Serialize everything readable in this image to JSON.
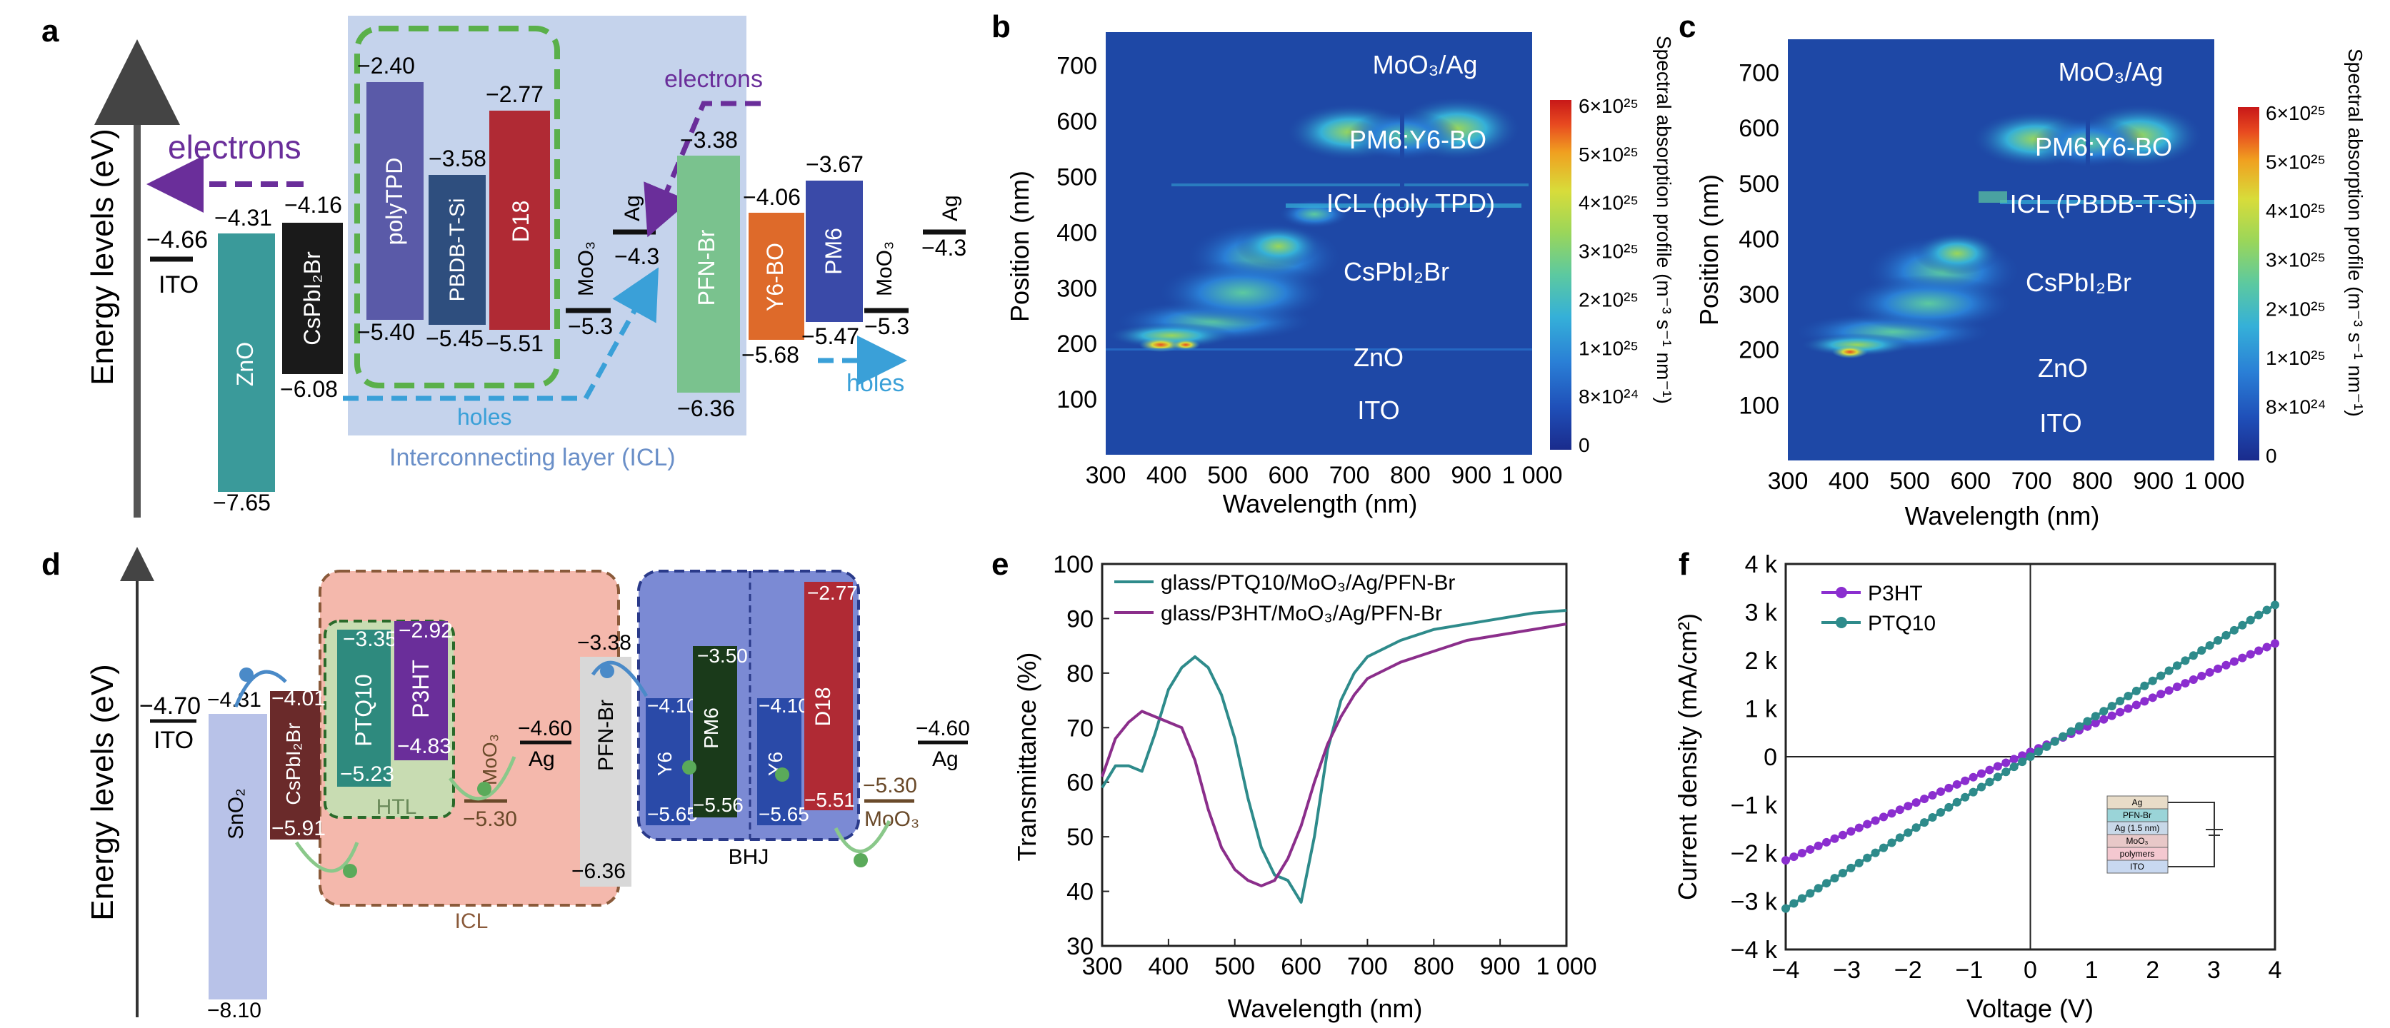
{
  "panel_labels": [
    "a",
    "b",
    "c",
    "d",
    "e",
    "f"
  ],
  "colors": {
    "cbar": [
      "#1a2b8c",
      "#1f4fb8",
      "#2a7fd6",
      "#35b0d8",
      "#5cc9a0",
      "#9ad65a",
      "#d8dc3a",
      "#f0a020",
      "#e84a20",
      "#c81818"
    ],
    "field": "#1e48a6"
  },
  "panel_a": {
    "axis": "Energy levels (eV)",
    "electrons_left": "electrons",
    "electrons_right": "electrons",
    "holes_mid": "holes",
    "holes_right": "holes",
    "icl_caption": "Interconnecting layer (ICL)",
    "ito": {
      "label": "ITO",
      "value": "−4.66"
    },
    "zno": {
      "label": "ZnO",
      "top": "−4.31",
      "bottom": "−7.65"
    },
    "cspbi": {
      "label": "CsPbI₂Br",
      "top": "−4.16",
      "bottom": "−6.08"
    },
    "polytpd": {
      "label": "polyTPD",
      "top": "−2.40",
      "bottom": "−5.40"
    },
    "pbdb": {
      "label": "PBDB-T-Si",
      "top": "−3.58",
      "bottom": "−5.45"
    },
    "d18": {
      "label": "D18",
      "top": "−2.77",
      "bottom": "−5.51"
    },
    "moo3_1": {
      "label": "MoO₃",
      "value": "−5.3"
    },
    "ag_1": {
      "label": "Ag",
      "value": "−4.3"
    },
    "pfn": {
      "label": "PFN-Br",
      "top": "−3.38",
      "bottom": "−6.36"
    },
    "y6bo": {
      "label": "Y6-BO",
      "top": "−4.06",
      "bottom": "−5.68"
    },
    "pm6": {
      "label": "PM6",
      "top": "−3.67",
      "bottom": "−5.47"
    },
    "moo3_2": {
      "label": "MoO₃",
      "value": "−5.3"
    },
    "ag_2": {
      "label": "Ag",
      "value": "−4.3"
    }
  },
  "panel_b": {
    "xlabel": "Wavelength (nm)",
    "ylabel": "Position (nm)",
    "xticks": [
      "300",
      "400",
      "500",
      "600",
      "700",
      "800",
      "900",
      "1 000"
    ],
    "yticks": [
      "100",
      "200",
      "300",
      "400",
      "500",
      "600",
      "700"
    ],
    "layers": [
      "MoO₃/Ag",
      "PM6:Y6-BO",
      "ICL (poly TPD)",
      "CsPbI₂Br",
      "ZnO",
      "ITO"
    ],
    "cbar_ticks": [
      "6×10²⁵",
      "5×10²⁵",
      "4×10²⁵",
      "3×10²⁵",
      "2×10²⁵",
      "1×10²⁵",
      "8×10²⁴",
      "0"
    ],
    "cbar_label": "Spectral absorption profile (m⁻³ s⁻¹ nm⁻¹)"
  },
  "panel_c": {
    "xlabel": "Wavelength (nm)",
    "ylabel": "Position (nm)",
    "xticks": [
      "300",
      "400",
      "500",
      "600",
      "700",
      "800",
      "900",
      "1 000"
    ],
    "yticks": [
      "100",
      "200",
      "300",
      "400",
      "500",
      "600",
      "700"
    ],
    "layers": [
      "MoO₃/Ag",
      "PM6:Y6-BO",
      "ICL (PBDB-T-Si)",
      "CsPbI₂Br",
      "ZnO",
      "ITO"
    ],
    "cbar_ticks": [
      "6×10²⁵",
      "5×10²⁵",
      "4×10²⁵",
      "3×10²⁵",
      "2×10²⁵",
      "1×10²⁵",
      "8×10²⁴",
      "0"
    ],
    "cbar_label": "Spectral absorption profile (m⁻³ s⁻¹ nm⁻¹)"
  },
  "panel_d": {
    "axis": "Energy levels (eV)",
    "ito": {
      "label": "ITO",
      "value": "−4.70"
    },
    "sno2": {
      "label": "SnO₂",
      "top": "−4.31",
      "bottom": "−8.10"
    },
    "cspbi": {
      "label": "CsPbI₂Br",
      "top": "−4.01",
      "bottom": "−5.91"
    },
    "ptq10": {
      "label": "PTQ10",
      "top": "−3.35",
      "bottom": "−5.23"
    },
    "p3ht": {
      "label": "P3HT",
      "top": "−2.92",
      "bottom": "−4.83"
    },
    "htl": "HTL",
    "moo3_1": {
      "label": "MoO₃",
      "value": "−5.30"
    },
    "ag_1": {
      "label": "Ag",
      "value": "−4.60"
    },
    "pfn": {
      "label": "PFN-Br",
      "top": "−3.38",
      "bottom": "−6.36"
    },
    "y6a": {
      "label": "Y6",
      "top": "−4.10",
      "bottom": "−5.65"
    },
    "pm6": {
      "label": "PM6",
      "top": "−3.50",
      "bottom": "−5.56"
    },
    "y6b": {
      "label": "Y6",
      "top": "−4.10",
      "bottom": "−5.65"
    },
    "d18": {
      "label": "D18",
      "top": "−2.77",
      "bottom": "−5.51"
    },
    "moo3_2": {
      "label": "MoO₃",
      "value": "−5.30"
    },
    "ag_2": {
      "label": "Ag",
      "value": "−4.60"
    },
    "icl": "ICL",
    "bhj": "BHJ"
  },
  "chart_data": [
    {
      "panel": "e",
      "type": "line",
      "xlabel": "Wavelength (nm)",
      "ylabel": "Transmittance (%)",
      "xlim": [
        300,
        1000
      ],
      "ylim": [
        30,
        100
      ],
      "xticks": [
        "300",
        "400",
        "500",
        "600",
        "700",
        "800",
        "900",
        "1 000"
      ],
      "yticks": [
        "30",
        "40",
        "50",
        "60",
        "70",
        "80",
        "90",
        "100"
      ],
      "series": [
        {
          "name": "glass/PTQ10/MoO₃/Ag/PFN-Br",
          "color": "#2e8b8b",
          "x": [
            300,
            320,
            340,
            360,
            380,
            400,
            420,
            440,
            460,
            480,
            500,
            520,
            540,
            560,
            580,
            600,
            620,
            640,
            660,
            680,
            700,
            750,
            800,
            850,
            900,
            950,
            1000
          ],
          "y": [
            59,
            63,
            63,
            62,
            69,
            77,
            81,
            83,
            81,
            76,
            68,
            57,
            48,
            43,
            42,
            38,
            50,
            66,
            75,
            80,
            83,
            86,
            88,
            89,
            90,
            91,
            91.5
          ]
        },
        {
          "name": "glass/P3HT/MoO₃/Ag/PFN-Br",
          "color": "#8b2e8b",
          "x": [
            300,
            320,
            340,
            360,
            380,
            400,
            420,
            440,
            460,
            480,
            500,
            520,
            540,
            560,
            580,
            600,
            620,
            640,
            660,
            680,
            700,
            750,
            800,
            850,
            900,
            950,
            1000
          ],
          "y": [
            61,
            68,
            71,
            73,
            72,
            71,
            70,
            64,
            55,
            48,
            44,
            42,
            41,
            42,
            46,
            52,
            60,
            67,
            72,
            76,
            79,
            82,
            84,
            86,
            87,
            88,
            89
          ]
        }
      ]
    },
    {
      "panel": "f",
      "type": "line",
      "xlabel": "Voltage (V)",
      "ylabel": "Current density (mA/cm²)",
      "xlim": [
        -4,
        4
      ],
      "ylim": [
        -4000,
        4000
      ],
      "xticks": [
        "−4",
        "−3",
        "−2",
        "−1",
        "0",
        "1",
        "2",
        "3",
        "4"
      ],
      "yticks": [
        "−4 k",
        "−3 k",
        "−2 k",
        "−1 k",
        "0",
        "1 k",
        "2 k",
        "3 k",
        "4 k"
      ],
      "series": [
        {
          "name": "P3HT",
          "color": "#8b2ecf",
          "x": [
            -4,
            4
          ],
          "y": [
            -2150,
            2350
          ]
        },
        {
          "name": "PTQ10",
          "color": "#2e8b8b",
          "x": [
            -4,
            4
          ],
          "y": [
            -3150,
            3150
          ]
        }
      ],
      "inset_stack": [
        "Ag",
        "PFN-Br",
        "Ag (1.5 nm)",
        "MoO₃",
        "polymers",
        "ITO"
      ]
    }
  ]
}
